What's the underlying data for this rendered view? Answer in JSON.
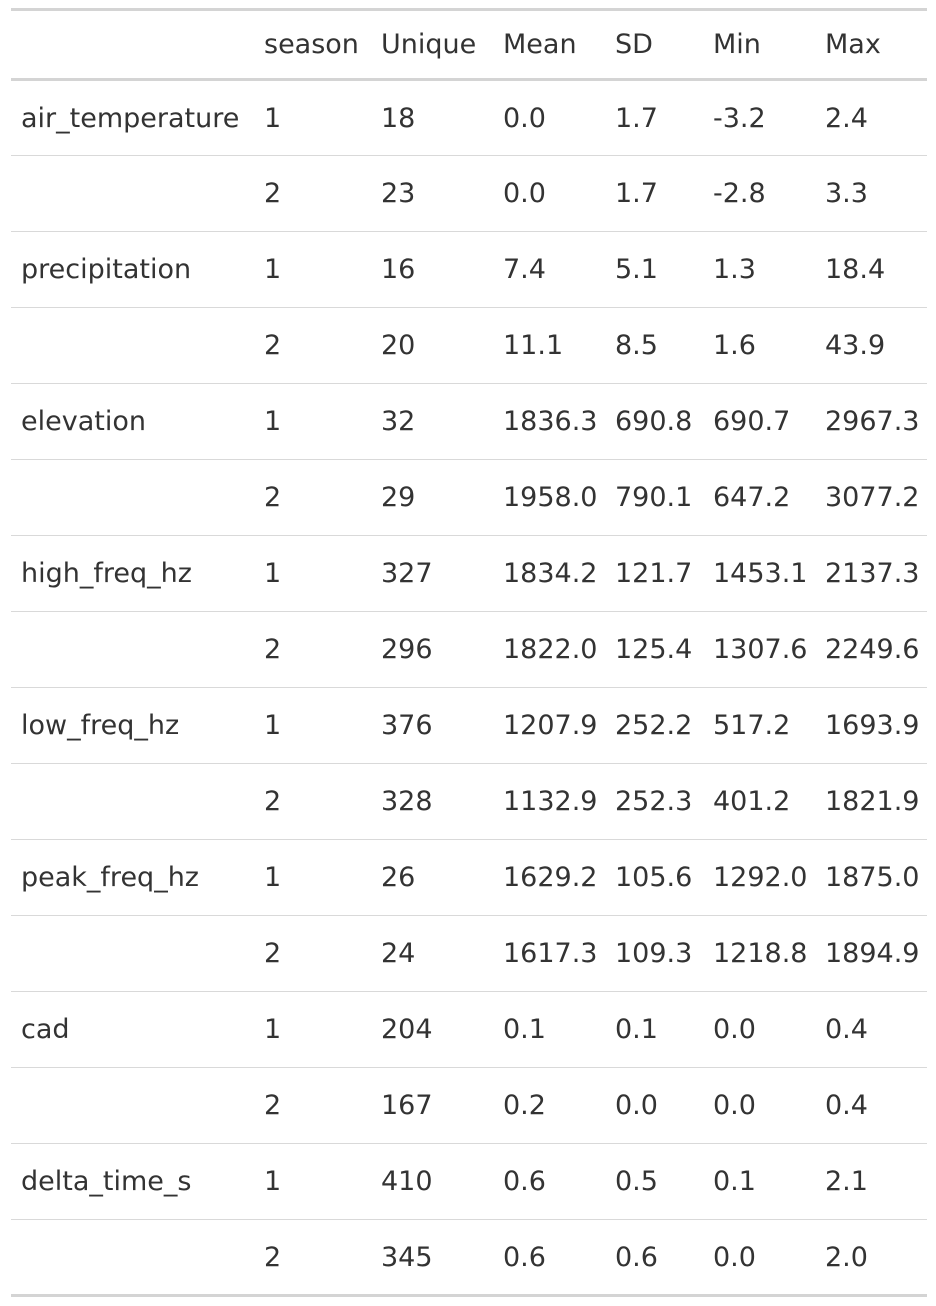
{
  "table": {
    "headers": [
      "",
      "season",
      "Unique",
      "Mean",
      "SD",
      "Min",
      "Max"
    ],
    "rows": [
      [
        "air_temperature",
        "1",
        "18",
        "0.0",
        "1.7",
        "-3.2",
        "2.4"
      ],
      [
        "",
        "2",
        "23",
        "0.0",
        "1.7",
        "-2.8",
        "3.3"
      ],
      [
        "precipitation",
        "1",
        "16",
        "7.4",
        "5.1",
        "1.3",
        "18.4"
      ],
      [
        "",
        "2",
        "20",
        "11.1",
        "8.5",
        "1.6",
        "43.9"
      ],
      [
        "elevation",
        "1",
        "32",
        "1836.3",
        "690.8",
        "690.7",
        "2967.3"
      ],
      [
        "",
        "2",
        "29",
        "1958.0",
        "790.1",
        "647.2",
        "3077.2"
      ],
      [
        "high_freq_hz",
        "1",
        "327",
        "1834.2",
        "121.7",
        "1453.1",
        "2137.3"
      ],
      [
        "",
        "2",
        "296",
        "1822.0",
        "125.4",
        "1307.6",
        "2249.6"
      ],
      [
        "low_freq_hz",
        "1",
        "376",
        "1207.9",
        "252.2",
        "517.2",
        "1693.9"
      ],
      [
        "",
        "2",
        "328",
        "1132.9",
        "252.3",
        "401.2",
        "1821.9"
      ],
      [
        "peak_freq_hz",
        "1",
        "26",
        "1629.2",
        "105.6",
        "1292.0",
        "1875.0"
      ],
      [
        "",
        "2",
        "24",
        "1617.3",
        "109.3",
        "1218.8",
        "1894.9"
      ],
      [
        "cad",
        "1",
        "204",
        "0.1",
        "0.1",
        "0.0",
        "0.4"
      ],
      [
        "",
        "2",
        "167",
        "0.2",
        "0.0",
        "0.0",
        "0.4"
      ],
      [
        "delta_time_s",
        "1",
        "410",
        "0.6",
        "0.5",
        "0.1",
        "2.1"
      ],
      [
        "",
        "2",
        "345",
        "0.6",
        "0.6",
        "0.0",
        "2.0"
      ]
    ]
  }
}
